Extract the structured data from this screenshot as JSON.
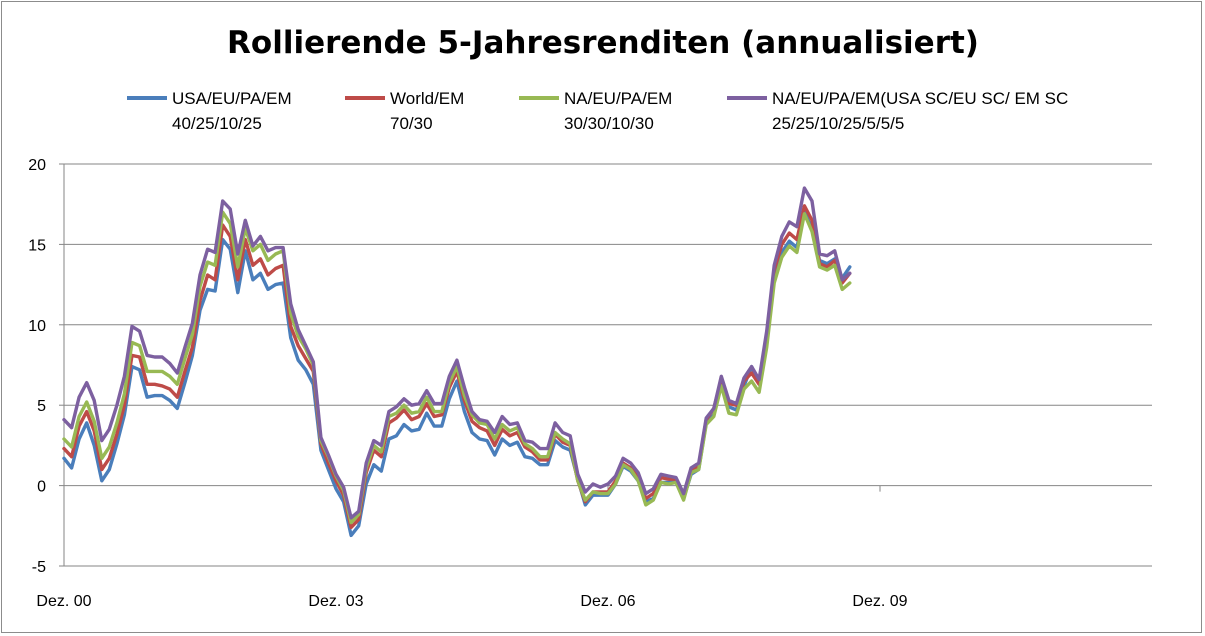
{
  "chart_data": {
    "type": "line",
    "title": "Rollierende 5-Jahresrenditen (annualisiert)",
    "xlabel": "",
    "ylabel": "",
    "ylim": [
      -5,
      20
    ],
    "yticks": [
      -5,
      0,
      5,
      10,
      15,
      20
    ],
    "grid": true,
    "legend_position": "top",
    "x_tick_labels": [
      {
        "label": "Dez. 00",
        "month_index": 0
      },
      {
        "label": "Dez. 03",
        "month_index": 36
      },
      {
        "label": "Dez. 06",
        "month_index": 72
      },
      {
        "label": "Dez. 09",
        "month_index": 108
      }
    ],
    "x_range": [
      0,
      144
    ],
    "series": [
      {
        "name": "USA/EU/PA/EM",
        "name_line2": "40/25/10/25",
        "color": "#4a7ebb",
        "start_month": 0,
        "values": [
          1.7,
          1.1,
          2.9,
          3.9,
          2.5,
          0.3,
          1.0,
          2.6,
          4.4,
          7.4,
          7.2,
          5.5,
          5.6,
          5.6,
          5.3,
          4.8,
          6.4,
          8.1,
          10.9,
          12.2,
          12.1,
          15.3,
          14.7,
          12.0,
          14.6,
          12.8,
          13.2,
          12.2,
          12.5,
          12.6,
          9.2,
          7.8,
          7.2,
          6.3,
          2.2,
          1.0,
          -0.2,
          -1.0,
          -3.1,
          -2.5,
          0.1,
          1.3,
          0.9,
          2.9,
          3.1,
          3.8,
          3.4,
          3.5,
          4.5,
          3.7,
          3.7,
          5.4,
          6.5,
          4.6,
          3.3,
          2.9,
          2.8,
          1.9,
          2.9,
          2.5,
          2.7,
          1.8,
          1.7,
          1.3,
          1.3,
          2.8,
          2.4,
          2.2,
          0.4,
          -1.2,
          -0.6,
          -0.6,
          -0.6,
          0.1,
          1.2,
          0.9,
          0.3,
          -1.0,
          -0.8,
          0.2,
          0.2,
          0.3,
          -0.8,
          0.7,
          1.0,
          3.9,
          4.4,
          6.3,
          4.9,
          4.7,
          6.2,
          7.4,
          6.4,
          9.0,
          13.0,
          14.5,
          15.2,
          14.8,
          17.0,
          16.0,
          14.0,
          13.8,
          14.1,
          12.9,
          13.6
        ]
      },
      {
        "name": "World/EM",
        "name_line2": "70/30",
        "color": "#be4b48",
        "start_month": 0,
        "values": [
          2.3,
          1.8,
          3.7,
          4.6,
          3.4,
          1.0,
          1.7,
          3.2,
          5.0,
          8.1,
          8.0,
          6.3,
          6.3,
          6.2,
          6.0,
          5.5,
          7.1,
          8.6,
          11.5,
          13.1,
          12.8,
          16.2,
          15.5,
          12.8,
          15.3,
          13.7,
          14.1,
          13.1,
          13.5,
          13.7,
          9.9,
          8.7,
          7.9,
          7.1,
          2.6,
          1.4,
          0.3,
          -0.6,
          -2.6,
          -2.1,
          0.8,
          2.2,
          1.8,
          3.9,
          4.2,
          4.7,
          4.1,
          4.3,
          5.1,
          4.3,
          4.4,
          6.1,
          7.1,
          5.3,
          4.0,
          3.6,
          3.4,
          2.5,
          3.5,
          3.1,
          3.3,
          2.4,
          2.1,
          1.6,
          1.6,
          3.2,
          2.7,
          2.5,
          0.3,
          -1.0,
          -0.4,
          -0.4,
          -0.4,
          0.3,
          1.4,
          1.1,
          0.5,
          -0.8,
          -0.5,
          0.5,
          0.4,
          0.4,
          -0.7,
          0.9,
          1.2,
          4.1,
          4.8,
          6.6,
          5.1,
          5.0,
          6.5,
          7.0,
          6.3,
          9.3,
          13.4,
          15.0,
          15.7,
          15.3,
          17.4,
          16.5,
          13.8,
          13.6,
          14.0,
          12.6,
          13.2
        ]
      },
      {
        "name": "NA/EU/PA/EM",
        "name_line2": "30/30/10/30",
        "color": "#98b954",
        "start_month": 0,
        "values": [
          2.9,
          2.4,
          4.3,
          5.2,
          4.0,
          1.7,
          2.4,
          3.9,
          5.7,
          8.9,
          8.7,
          7.1,
          7.1,
          7.1,
          6.8,
          6.3,
          7.9,
          9.4,
          12.4,
          13.9,
          13.7,
          17.0,
          16.3,
          13.6,
          16.0,
          14.6,
          15.0,
          14.0,
          14.4,
          14.6,
          10.7,
          9.3,
          8.5,
          7.5,
          2.8,
          1.8,
          0.6,
          -0.3,
          -2.3,
          -1.8,
          1.1,
          2.5,
          2.1,
          4.3,
          4.5,
          5.0,
          4.5,
          4.6,
          5.5,
          4.6,
          4.6,
          6.4,
          7.4,
          5.6,
          4.4,
          3.9,
          3.8,
          2.9,
          3.8,
          3.4,
          3.6,
          2.6,
          2.3,
          1.8,
          1.8,
          3.3,
          2.9,
          2.6,
          0.3,
          -0.9,
          -0.4,
          -0.5,
          -0.5,
          0.1,
          1.3,
          1.0,
          0.3,
          -1.2,
          -0.9,
          0.2,
          0.1,
          0.2,
          -0.9,
          0.8,
          1.0,
          3.8,
          4.3,
          6.2,
          4.5,
          4.4,
          6.0,
          6.5,
          5.8,
          8.6,
          12.6,
          14.2,
          14.9,
          14.5,
          16.9,
          15.8,
          13.6,
          13.4,
          13.7,
          12.2,
          12.6
        ]
      },
      {
        "name": "NA/EU/PA/EM(USA SC/EU SC/ EM SC",
        "name_line2": "25/25/10/25/5/5/5",
        "color": "#7d60a0",
        "start_month": 0,
        "values": [
          4.1,
          3.6,
          5.5,
          6.4,
          5.3,
          2.8,
          3.5,
          5.0,
          6.8,
          9.9,
          9.6,
          8.1,
          8.0,
          8.0,
          7.6,
          7.0,
          8.6,
          10.1,
          13.1,
          14.7,
          14.5,
          17.7,
          17.2,
          14.4,
          16.5,
          14.9,
          15.5,
          14.6,
          14.8,
          14.8,
          11.3,
          9.7,
          8.7,
          7.7,
          3.0,
          1.9,
          0.7,
          -0.1,
          -2.0,
          -1.6,
          1.4,
          2.8,
          2.5,
          4.6,
          4.9,
          5.4,
          5.0,
          5.1,
          5.9,
          5.1,
          5.1,
          6.8,
          7.8,
          6.1,
          4.6,
          4.1,
          4.0,
          3.3,
          4.3,
          3.8,
          3.9,
          2.8,
          2.7,
          2.3,
          2.3,
          3.9,
          3.3,
          3.1,
          0.7,
          -0.4,
          0.1,
          -0.1,
          0.1,
          0.6,
          1.7,
          1.4,
          0.8,
          -0.5,
          -0.2,
          0.7,
          0.6,
          0.5,
          -0.5,
          1.1,
          1.4,
          4.2,
          4.8,
          6.8,
          5.3,
          5.1,
          6.7,
          7.4,
          6.6,
          9.6,
          13.7,
          15.5,
          16.4,
          16.1,
          18.5,
          17.7,
          14.4,
          14.3,
          14.6,
          12.8,
          13.2
        ]
      }
    ]
  }
}
